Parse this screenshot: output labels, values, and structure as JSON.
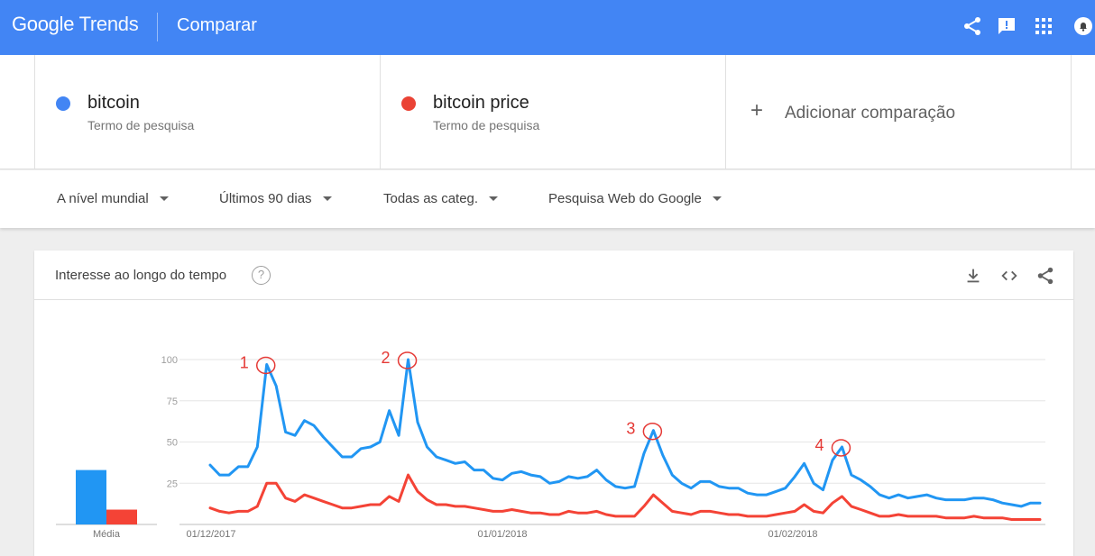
{
  "header": {
    "logo_google": "Google",
    "logo_trends": "Trends",
    "title": "Comparar",
    "icons": [
      "share-icon",
      "feedback-icon",
      "apps-grid-icon",
      "notifications-icon"
    ]
  },
  "terms": [
    {
      "name": "bitcoin",
      "type": "Termo de pesquisa",
      "color": "#4285f4"
    },
    {
      "name": "bitcoin price",
      "type": "Termo de pesquisa",
      "color": "#ea4335"
    }
  ],
  "add_comparison": {
    "label": "Adicionar comparação",
    "icon": "plus-icon"
  },
  "filters": {
    "region": "A nível mundial",
    "period": "Últimos 90 dias",
    "category": "Todas as categ.",
    "search_type": "Pesquisa Web do Google"
  },
  "card": {
    "title": "Interesse ao longo do tempo",
    "help": "?",
    "icons": [
      "download-icon",
      "embed-code-icon",
      "share-icon"
    ],
    "average_label": "Média"
  },
  "chart_data": {
    "type": "line",
    "title": "",
    "xlabel": "",
    "ylabel": "",
    "ylim": [
      0,
      100
    ],
    "yticks": [
      25,
      50,
      75,
      100
    ],
    "xtick_labels": [
      "01/12/2017",
      "01/01/2018",
      "01/02/2018"
    ],
    "grid": true,
    "average_bars": [
      {
        "series": "bitcoin",
        "value": 33,
        "color": "#2196f3"
      },
      {
        "series": "bitcoin price",
        "value": 9,
        "color": "#f44336"
      }
    ],
    "series": [
      {
        "name": "bitcoin",
        "color": "#2196f3",
        "values": [
          36,
          30,
          30,
          35,
          35,
          47,
          97,
          84,
          56,
          54,
          63,
          60,
          53,
          47,
          41,
          41,
          46,
          47,
          50,
          69,
          54,
          100,
          62,
          47,
          41,
          39,
          37,
          38,
          33,
          33,
          28,
          27,
          31,
          32,
          30,
          29,
          25,
          26,
          29,
          28,
          29,
          33,
          27,
          23,
          22,
          23,
          43,
          57,
          42,
          30,
          25,
          22,
          26,
          26,
          23,
          22,
          22,
          19,
          18,
          18,
          20,
          22,
          29,
          37,
          25,
          21,
          39,
          47,
          30,
          27,
          23,
          18,
          16,
          18,
          16,
          17,
          18,
          16,
          15,
          15,
          15,
          16,
          16,
          15,
          13,
          12,
          11,
          13,
          13
        ]
      },
      {
        "name": "bitcoin price",
        "color": "#f44336",
        "values": [
          10,
          8,
          7,
          8,
          8,
          11,
          25,
          25,
          16,
          14,
          18,
          16,
          14,
          12,
          10,
          10,
          11,
          12,
          12,
          17,
          14,
          30,
          20,
          15,
          12,
          12,
          11,
          11,
          10,
          9,
          8,
          8,
          9,
          8,
          7,
          7,
          6,
          6,
          8,
          7,
          7,
          8,
          6,
          5,
          5,
          5,
          11,
          18,
          13,
          8,
          7,
          6,
          8,
          8,
          7,
          6,
          6,
          5,
          5,
          5,
          6,
          7,
          8,
          12,
          8,
          7,
          13,
          17,
          11,
          9,
          7,
          5,
          5,
          6,
          5,
          5,
          5,
          5,
          4,
          4,
          4,
          5,
          4,
          4,
          4,
          3,
          3,
          3,
          3
        ]
      }
    ],
    "annotations": [
      {
        "label": "1",
        "series": "bitcoin",
        "index": 6
      },
      {
        "label": "2",
        "series": "bitcoin",
        "index": 21
      },
      {
        "label": "3",
        "series": "bitcoin",
        "index": 47
      },
      {
        "label": "4",
        "series": "bitcoin",
        "index": 67
      }
    ]
  }
}
